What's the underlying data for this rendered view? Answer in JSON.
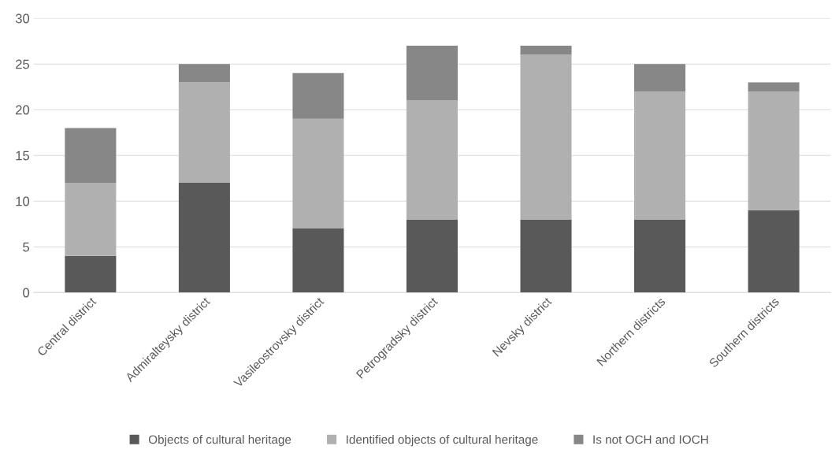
{
  "chart_data": {
    "type": "bar",
    "stacked": true,
    "categories": [
      "Central district",
      "Admiralteysky district",
      "Vasileostrovsky district",
      "Petrogradsky district",
      "Nevsky district",
      "Northern districts",
      "Southern districts"
    ],
    "series": [
      {
        "name": "Objects of cultural heritage",
        "color": "#595959",
        "values": [
          4,
          12,
          7,
          8,
          8,
          8,
          9
        ]
      },
      {
        "name": "Identified objects of cultural heritage",
        "color": "#b0b0b0",
        "values": [
          8,
          11,
          12,
          13,
          18,
          14,
          13
        ]
      },
      {
        "name": "Is not OCH and IOCH",
        "color": "#878787",
        "values": [
          6,
          2,
          5,
          6,
          1,
          3,
          1
        ]
      }
    ],
    "ylim": [
      0,
      30
    ],
    "yticks": [
      0,
      5,
      10,
      15,
      20,
      25,
      30
    ],
    "grid": "y",
    "legend": "bottom"
  }
}
